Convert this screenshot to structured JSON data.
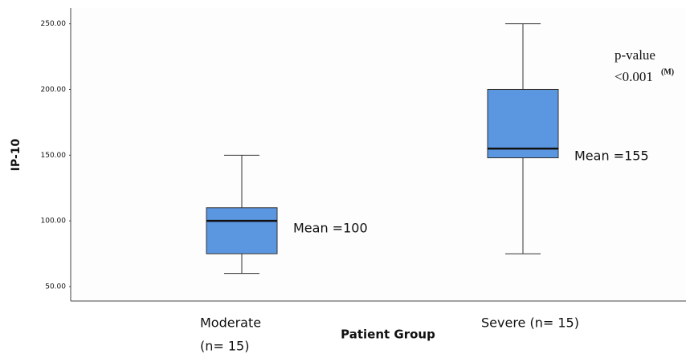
{
  "chart_data": {
    "type": "box",
    "y_label": "IP-10",
    "x_label": "Patient Group",
    "categories": [
      [
        "Moderate",
        "(n= 15)"
      ],
      [
        "Severe (n= 15)"
      ]
    ],
    "boxes": [
      {
        "min": 60,
        "q1": 75,
        "median": 100,
        "q3": 110,
        "max": 150
      },
      {
        "min": 75,
        "q1": 148,
        "median": 155,
        "q3": 200,
        "max": 250
      }
    ],
    "color": "#5b96e0",
    "mean_labels": [
      "Mean =100",
      "Mean =155"
    ],
    "p_value": {
      "lines": [
        "p-value",
        "<0.001"
      ],
      "superscript": "(M)"
    },
    "ylim": [
      39,
      262
    ],
    "yticks": [
      {
        "value": 50,
        "label": "50.00"
      },
      {
        "value": 100,
        "label": "100.00"
      },
      {
        "value": 150,
        "label": "150.00"
      },
      {
        "value": 200,
        "label": "200.00"
      },
      {
        "value": 250,
        "label": "250.00"
      }
    ],
    "grid": false
  }
}
